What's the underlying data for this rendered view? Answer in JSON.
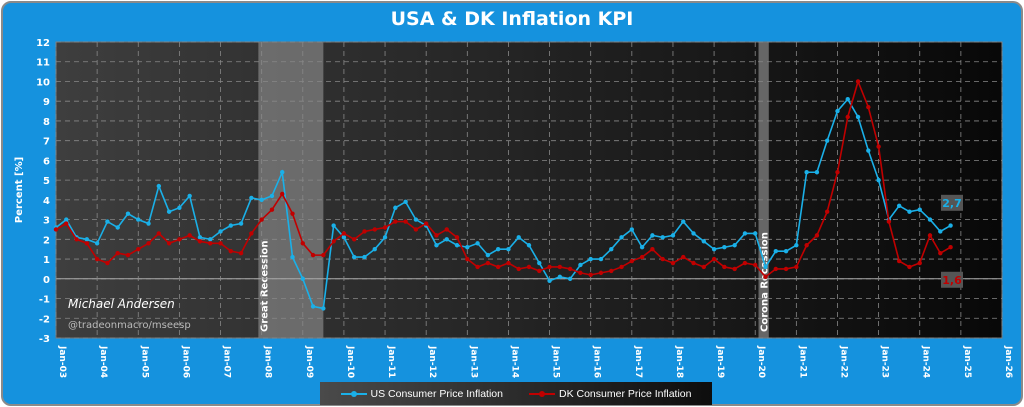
{
  "chart_data": {
    "type": "line",
    "title": "USA & DK Inflation KPI",
    "xlabel": "",
    "ylabel": "Percent [%]",
    "ylim": [
      -3,
      12
    ],
    "yticks": [
      "-3",
      "-2",
      "-1",
      "0",
      "1",
      "2",
      "3",
      "4",
      "5",
      "6",
      "7",
      "8",
      "9",
      "10",
      "11",
      "12"
    ],
    "xlim": [
      2003,
      2026
    ],
    "xticks": [
      "Jan-03",
      "Jan-04",
      "Jan-05",
      "Jan-06",
      "Jan-07",
      "Jan-08",
      "Jan-09",
      "Jan-10",
      "Jan-11",
      "Jan-12",
      "Jan-13",
      "Jan-14",
      "Jan-15",
      "Jan-16",
      "Jan-17",
      "Jan-18",
      "Jan-19",
      "Jan-20",
      "Jan-21",
      "Jan-22",
      "Jan-23",
      "Jan-24",
      "Jan-25",
      "Jan-26"
    ],
    "grid": true,
    "legend_position": "bottom",
    "recessions": [
      {
        "label": "Great Recession",
        "start": 2007.92,
        "end": 2009.5
      },
      {
        "label": "Corona Recession",
        "start": 2020.08,
        "end": 2020.33
      }
    ],
    "series": [
      {
        "name": "US Consumer Price Inflation",
        "color": "#1ab0e8",
        "last_label": "2,7",
        "values": [
          2.6,
          3.0,
          2.1,
          2.0,
          1.8,
          2.9,
          2.6,
          3.3,
          3.0,
          2.8,
          4.7,
          3.4,
          3.6,
          4.2,
          2.1,
          2.0,
          2.4,
          2.7,
          2.8,
          4.1,
          4.0,
          4.2,
          5.4,
          1.1,
          0.0,
          -1.4,
          -1.5,
          2.7,
          2.1,
          1.1,
          1.1,
          1.5,
          2.1,
          3.6,
          3.9,
          3.0,
          2.7,
          1.7,
          2.0,
          1.7,
          1.6,
          1.8,
          1.2,
          1.5,
          1.5,
          2.1,
          1.7,
          0.8,
          -0.1,
          0.1,
          0.0,
          0.7,
          1.0,
          1.0,
          1.5,
          2.1,
          2.5,
          1.6,
          2.2,
          2.1,
          2.2,
          2.9,
          2.3,
          1.9,
          1.5,
          1.6,
          1.7,
          2.3,
          2.3,
          0.6,
          1.4,
          1.4,
          1.7,
          5.4,
          5.4,
          7.0,
          8.5,
          9.1,
          8.2,
          6.5,
          5.0,
          3.0,
          3.7,
          3.4,
          3.5,
          3.0,
          2.4,
          2.7
        ]
      },
      {
        "name": "DK Consumer Price Inflation",
        "color": "#c00000",
        "last_label": "1,6",
        "values": [
          2.5,
          2.8,
          2.0,
          1.8,
          1.0,
          0.8,
          1.3,
          1.2,
          1.5,
          1.8,
          2.3,
          1.8,
          2.0,
          2.2,
          1.9,
          1.8,
          1.8,
          1.4,
          1.3,
          2.3,
          3.0,
          3.5,
          4.3,
          3.3,
          1.8,
          1.2,
          1.2,
          1.9,
          2.3,
          2.0,
          2.4,
          2.5,
          2.6,
          2.9,
          2.9,
          2.5,
          2.8,
          2.2,
          2.5,
          2.1,
          1.0,
          0.6,
          0.8,
          0.6,
          0.8,
          0.5,
          0.6,
          0.4,
          0.6,
          0.6,
          0.5,
          0.3,
          0.2,
          0.3,
          0.4,
          0.6,
          0.9,
          1.1,
          1.5,
          1.0,
          0.8,
          1.1,
          0.8,
          0.6,
          1.0,
          0.6,
          0.5,
          0.8,
          0.7,
          0.1,
          0.5,
          0.5,
          0.6,
          1.7,
          2.2,
          3.4,
          5.4,
          8.2,
          10.0,
          8.7,
          6.7,
          2.9,
          0.9,
          0.6,
          0.8,
          2.2,
          1.3,
          1.6
        ]
      }
    ],
    "x_start": 2003.0,
    "x_step": 0.25,
    "annotations": [
      "Michael Andersen",
      "@tradeonmacro/mseesp"
    ]
  }
}
